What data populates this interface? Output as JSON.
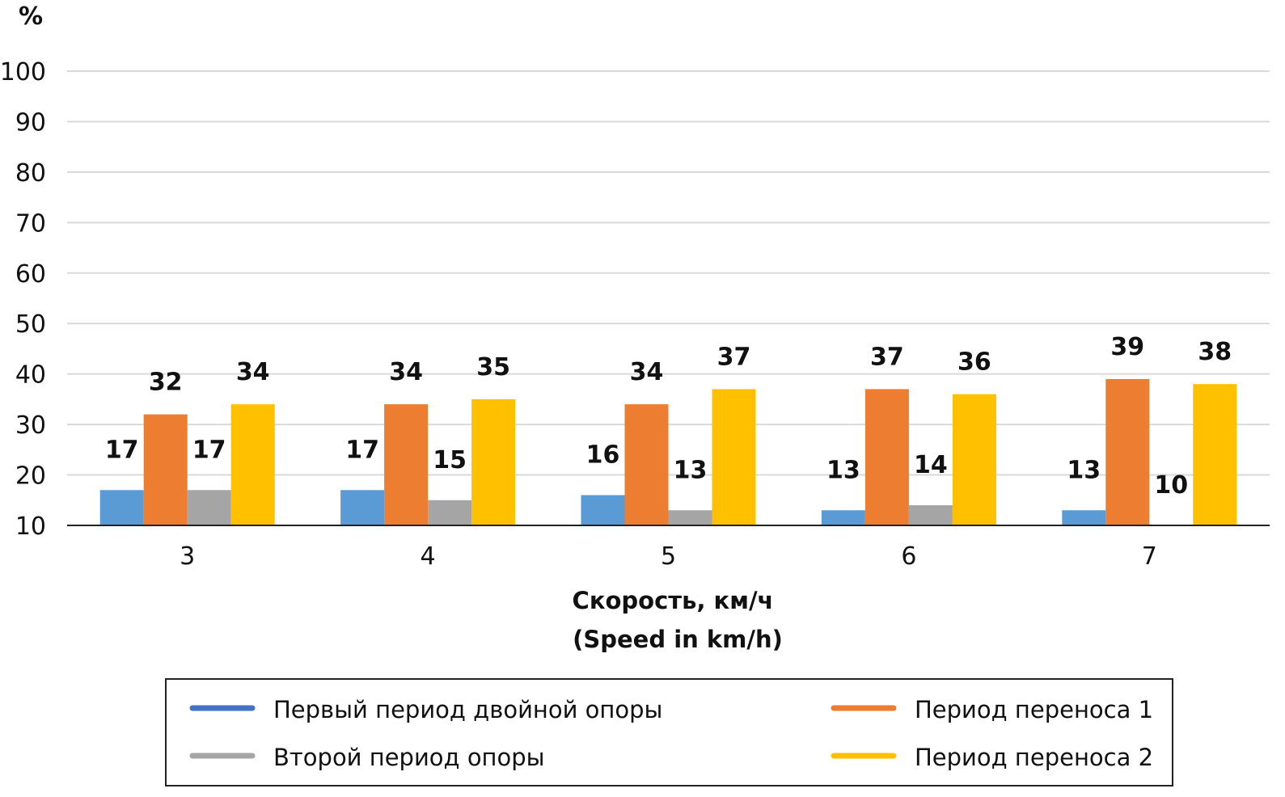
{
  "chart_data": {
    "type": "bar",
    "title": "",
    "ylabel": "%",
    "xlabel": "Скорость, км/ч",
    "xlabel_en": "(Speed in km/h)",
    "ylim": [
      10,
      100
    ],
    "yticks": [
      "10",
      "20",
      "30",
      "40",
      "50",
      "60",
      "70",
      "80",
      "90",
      "100"
    ],
    "grid": true,
    "legend_position": "bottom",
    "categories": [
      "3",
      "4",
      "5",
      "6",
      "7"
    ],
    "series": [
      {
        "name": "Первый период двойной опоры",
        "color": "#5B9BD5",
        "legend_color": "#4472C4",
        "values": [
          17,
          17,
          16,
          13,
          13
        ]
      },
      {
        "name": "Период переноса 1",
        "color": "#ED7D31",
        "legend_color": "#ED7D31",
        "values": [
          32,
          34,
          34,
          37,
          39
        ]
      },
      {
        "name": "Второй период опоры",
        "color": "#A5A5A5",
        "legend_color": "#A5A5A5",
        "values": [
          17,
          15,
          13,
          14,
          10
        ]
      },
      {
        "name": "Период переноса 2",
        "color": "#FFC000",
        "legend_color": "#FFC000",
        "values": [
          34,
          35,
          37,
          36,
          38
        ]
      }
    ]
  }
}
